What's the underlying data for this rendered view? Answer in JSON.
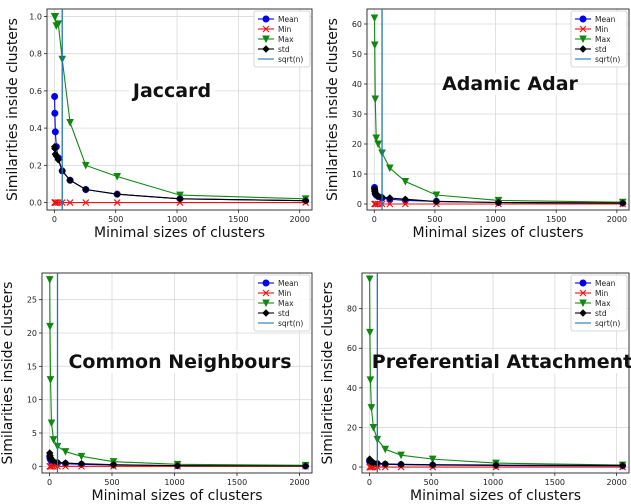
{
  "colors": {
    "mean": "#0000ee",
    "min": "#ee1111",
    "max": "#118811",
    "std": "#000000",
    "sqrt": "#1f77b4",
    "grid": "#d9d9d9"
  },
  "legend_labels": [
    "Mean",
    "Min",
    "Max",
    "std",
    "sqrt(n)"
  ],
  "chart_data": [
    {
      "type": "line",
      "overlay_text": "Jaccard",
      "xlabel": "Minimal sizes of clusters",
      "ylabel": "Similarities inside clusters",
      "xlim": [
        -60,
        2100
      ],
      "ylim": [
        -0.04,
        1.04
      ],
      "xticks": [
        0,
        500,
        1000,
        1500,
        2000
      ],
      "yticks": [
        0.0,
        0.2,
        0.4,
        0.6,
        0.8,
        1.0
      ],
      "ytick_labels": [
        "0.0",
        "0.2",
        "0.4",
        "0.6",
        "0.8",
        "1.0"
      ],
      "grid": true,
      "legend_position": "top-right",
      "sqrt_n": 64,
      "x": [
        2,
        4,
        8,
        16,
        32,
        64,
        128,
        256,
        512,
        1024,
        2048
      ],
      "series": [
        {
          "name": "Mean",
          "values": [
            0.57,
            0.48,
            0.38,
            0.3,
            0.24,
            0.17,
            0.12,
            0.07,
            0.045,
            0.02,
            0.01
          ]
        },
        {
          "name": "Min",
          "values": [
            0.0,
            0.0,
            0.0,
            0.0,
            0.0,
            0.0,
            0.0,
            0.0,
            0.0,
            0.0,
            0.0
          ]
        },
        {
          "name": "Max",
          "values": [
            1.0,
            1.0,
            1.0,
            0.95,
            0.96,
            0.77,
            0.43,
            0.2,
            0.14,
            0.04,
            0.02
          ]
        },
        {
          "name": "std",
          "values": [
            0.3,
            0.29,
            0.26,
            0.25,
            0.23,
            0.17,
            0.12,
            0.07,
            0.045,
            0.02,
            0.01
          ]
        }
      ]
    },
    {
      "type": "line",
      "overlay_text": "Adamic Adar",
      "xlabel": "Minimal sizes of clusters",
      "ylabel": "Similarities inside clusters",
      "xlim": [
        -60,
        2100
      ],
      "ylim": [
        -2,
        65
      ],
      "xticks": [
        0,
        500,
        1000,
        1500,
        2000
      ],
      "yticks": [
        0,
        10,
        20,
        30,
        40,
        50,
        60
      ],
      "ytick_labels": [
        "0",
        "10",
        "20",
        "30",
        "40",
        "50",
        "60"
      ],
      "grid": true,
      "legend_position": "top-right",
      "sqrt_n": 64,
      "x": [
        2,
        4,
        8,
        16,
        32,
        64,
        128,
        256,
        512,
        1024,
        2048
      ],
      "series": [
        {
          "name": "Mean",
          "values": [
            5.5,
            4.5,
            3.5,
            3.0,
            2.5,
            2.0,
            1.6,
            1.2,
            0.9,
            0.5,
            0.3
          ]
        },
        {
          "name": "Min",
          "values": [
            0.0,
            0.0,
            0.0,
            0.0,
            0.0,
            0.0,
            0.0,
            0.0,
            0.0,
            0.0,
            0.0
          ]
        },
        {
          "name": "Max",
          "values": [
            62,
            53,
            35,
            22,
            20,
            17,
            12,
            7.5,
            3,
            1.2,
            0.6
          ]
        },
        {
          "name": "std",
          "values": [
            5.0,
            4.2,
            3.5,
            3.0,
            2.6,
            2.3,
            2.0,
            1.6,
            0.8,
            0.5,
            0.3
          ]
        }
      ]
    },
    {
      "type": "line",
      "overlay_text": "Common Neighbours",
      "xlabel": "Minimal sizes of clusters",
      "ylabel": "Similarities inside clusters",
      "xlim": [
        -60,
        2100
      ],
      "ylim": [
        -1,
        29
      ],
      "xticks": [
        0,
        500,
        1000,
        1500,
        2000
      ],
      "yticks": [
        0,
        5,
        10,
        15,
        20,
        25
      ],
      "ytick_labels": [
        "0",
        "5",
        "10",
        "15",
        "20",
        "25"
      ],
      "grid": true,
      "legend_position": "top-right",
      "sqrt_n": 64,
      "x": [
        2,
        4,
        8,
        16,
        32,
        64,
        128,
        256,
        512,
        1024,
        2048
      ],
      "series": [
        {
          "name": "Mean",
          "values": [
            1.5,
            1.2,
            1.0,
            0.8,
            0.6,
            0.5,
            0.4,
            0.3,
            0.2,
            0.1,
            0.05
          ]
        },
        {
          "name": "Min",
          "values": [
            0.0,
            0.0,
            0.0,
            0.0,
            0.0,
            0.0,
            0.0,
            0.0,
            0.0,
            0.0,
            0.0
          ]
        },
        {
          "name": "Max",
          "values": [
            28,
            21,
            13,
            6.5,
            4,
            3,
            2.2,
            1.5,
            0.7,
            0.3,
            0.15
          ]
        },
        {
          "name": "std",
          "values": [
            2.0,
            1.6,
            1.3,
            1.0,
            0.8,
            0.6,
            0.5,
            0.4,
            0.25,
            0.1,
            0.05
          ]
        }
      ]
    },
    {
      "type": "line",
      "overlay_text": "Preferential Attachment",
      "xlabel": "Minimal sizes of clusters",
      "ylabel": "Similarities inside clusters",
      "xlim": [
        -60,
        2100
      ],
      "ylim": [
        -3,
        98
      ],
      "xticks": [
        0,
        500,
        1000,
        1500,
        2000
      ],
      "yticks": [
        0,
        20,
        40,
        60,
        80
      ],
      "ytick_labels": [
        "0",
        "20",
        "40",
        "60",
        "80"
      ],
      "grid": true,
      "legend_position": "top-right",
      "sqrt_n": 64,
      "x": [
        2,
        4,
        8,
        16,
        32,
        64,
        128,
        256,
        512,
        1024,
        2048
      ],
      "series": [
        {
          "name": "Mean",
          "values": [
            3.0,
            2.5,
            2.2,
            2.0,
            1.8,
            1.6,
            1.4,
            1.2,
            1.0,
            0.8,
            0.6
          ]
        },
        {
          "name": "Min",
          "values": [
            0.0,
            0.0,
            0.0,
            0.0,
            0.0,
            0.0,
            0.0,
            0.0,
            0.0,
            0.0,
            0.0
          ]
        },
        {
          "name": "Max",
          "values": [
            95,
            68,
            44,
            30,
            20,
            14,
            9,
            6,
            4,
            2,
            1
          ]
        },
        {
          "name": "std",
          "values": [
            4.0,
            3.2,
            2.8,
            2.5,
            2.2,
            1.9,
            1.6,
            1.4,
            1.2,
            1.0,
            0.8
          ]
        }
      ]
    }
  ]
}
